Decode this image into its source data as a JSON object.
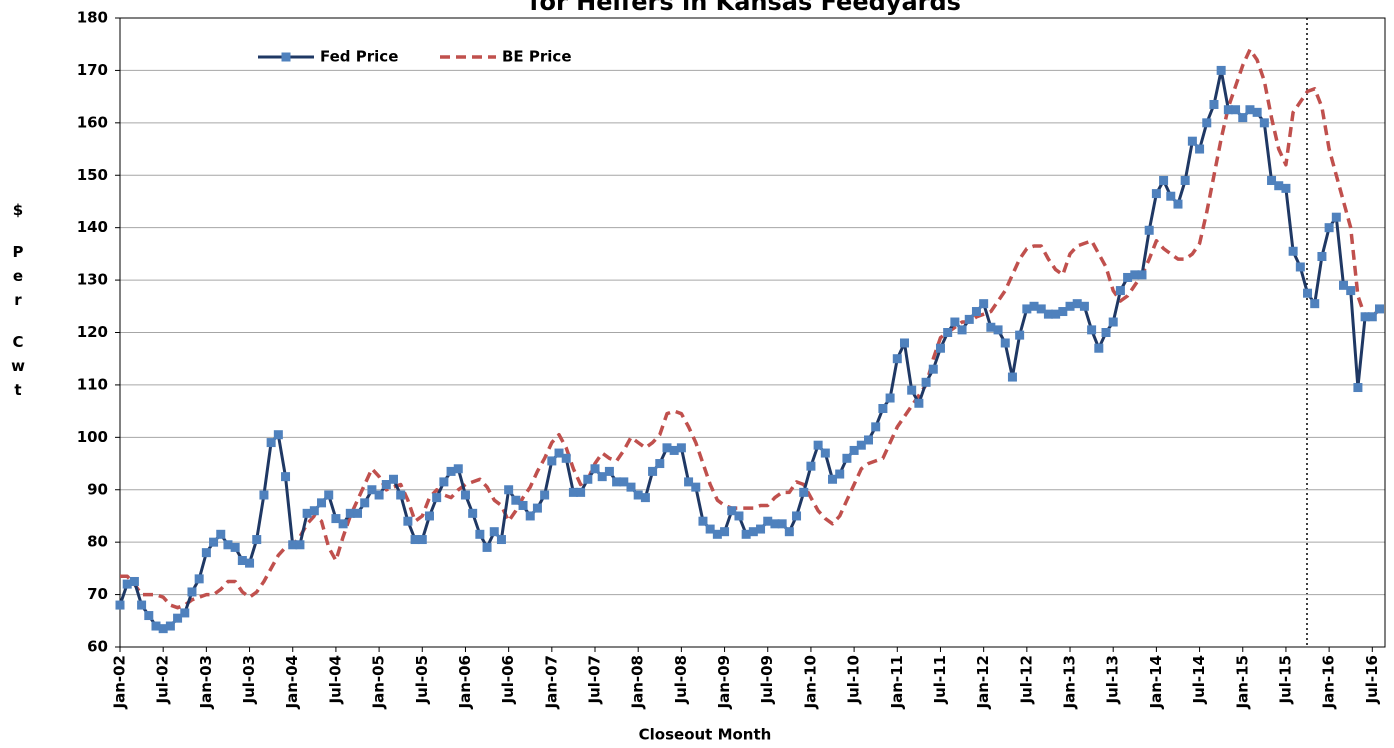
{
  "chart_data": {
    "type": "line",
    "title": "for Heifers in Kansas Feedyards",
    "x_label": "Closeout Month",
    "y_label": "$ Per Cwt",
    "categories": [
      "Jan-02",
      null,
      null,
      null,
      null,
      null,
      "Jul-02",
      null,
      null,
      null,
      null,
      null,
      "Jan-03",
      null,
      null,
      null,
      null,
      null,
      "Jul-03",
      null,
      null,
      null,
      null,
      null,
      "Jan-04",
      null,
      null,
      null,
      null,
      null,
      "Jul-04",
      null,
      null,
      null,
      null,
      null,
      "Jan-05",
      null,
      null,
      null,
      null,
      null,
      "Jul-05",
      null,
      null,
      null,
      null,
      null,
      "Jan-06",
      null,
      null,
      null,
      null,
      null,
      "Jul-06",
      null,
      null,
      null,
      null,
      null,
      "Jan-07",
      null,
      null,
      null,
      null,
      null,
      "Jul-07",
      null,
      null,
      null,
      null,
      null,
      "Jan-08",
      null,
      null,
      null,
      null,
      null,
      "Jul-08",
      null,
      null,
      null,
      null,
      null,
      "Jan-09",
      null,
      null,
      null,
      null,
      null,
      "Jul-09",
      null,
      null,
      null,
      null,
      null,
      "Jan-10",
      null,
      null,
      null,
      null,
      null,
      "Jul-10",
      null,
      null,
      null,
      null,
      null,
      "Jan-11",
      null,
      null,
      null,
      null,
      null,
      "Jul-11",
      null,
      null,
      null,
      null,
      null,
      "Jan-12",
      null,
      null,
      null,
      null,
      null,
      "Jul-12",
      null,
      null,
      null,
      null,
      null,
      "Jan-13",
      null,
      null,
      null,
      null,
      null,
      "Jul-13",
      null,
      null,
      null,
      null,
      null,
      "Jan-14",
      null,
      null,
      null,
      null,
      null,
      "Jul-14",
      null,
      null,
      null,
      null,
      null,
      "Jan-15",
      null,
      null,
      null,
      null,
      null,
      "Jul-15",
      null,
      null,
      null,
      null,
      null,
      "Jan-16",
      null,
      null,
      null,
      null,
      null,
      "Jul-16",
      null
    ],
    "series": [
      {
        "name": "Fed Price",
        "color": "#1f3864",
        "marker_color": "#4f81bd",
        "dashed": false,
        "values": [
          68,
          72,
          72.5,
          68,
          66,
          64,
          63.5,
          64,
          65.5,
          66.5,
          70.5,
          73,
          78,
          80,
          81.5,
          79.5,
          79,
          76.5,
          76,
          80.5,
          89,
          99,
          100.5,
          92.5,
          79.5,
          79.5,
          85.5,
          86,
          87.5,
          89,
          84.5,
          83.5,
          85.5,
          85.5,
          87.5,
          90,
          89,
          91,
          92,
          89,
          84,
          80.5,
          80.5,
          85,
          88.5,
          91.5,
          93.5,
          94,
          89,
          85.5,
          81.5,
          79,
          82,
          80.5,
          90,
          88,
          87,
          85,
          86.5,
          89,
          95.5,
          97,
          96,
          89.5,
          89.5,
          92,
          94,
          92.5,
          93.5,
          91.5,
          91.5,
          90.5,
          89,
          88.5,
          93.5,
          95,
          98,
          97.5,
          98,
          91.5,
          90.5,
          84,
          82.5,
          81.5,
          82,
          86,
          85,
          81.5,
          82,
          82.5,
          84,
          83.5,
          83.5,
          82,
          85,
          89.5,
          94.5,
          98.5,
          97,
          92,
          93,
          96,
          97.5,
          98.5,
          99.5,
          102,
          105.5,
          107.5,
          115,
          118,
          109,
          106.5,
          110.5,
          113,
          117,
          120,
          122,
          120.5,
          122.5,
          124,
          125.5,
          121,
          120.5,
          118,
          111.5,
          119.5,
          124.5,
          125,
          124.5,
          123.5,
          123.5,
          124,
          125,
          125.5,
          125,
          120.5,
          117,
          120,
          122,
          128,
          130.5,
          131,
          131,
          139.5,
          146.5,
          149,
          146,
          144.5,
          149,
          156.5,
          155,
          160,
          163.5,
          170,
          162.5,
          162.5,
          161,
          162.5,
          162,
          160,
          149,
          148,
          147.5,
          135.5,
          132.5,
          127.5,
          125.5,
          134.5,
          140,
          142,
          129,
          128,
          109.5,
          123,
          123,
          124.5
        ]
      },
      {
        "name": "BE Price",
        "color": "#c0504d",
        "dashed": true,
        "values": [
          73.5,
          73.5,
          72,
          70,
          70,
          70,
          69.5,
          68,
          67.5,
          68,
          69,
          69.5,
          70,
          70,
          71,
          72.5,
          72.5,
          70.5,
          69.5,
          70.5,
          72.5,
          75,
          77.5,
          79,
          79.5,
          81,
          83.5,
          85,
          84,
          79,
          76.5,
          81,
          85,
          88,
          91,
          94,
          92.5,
          90,
          90.5,
          91,
          88,
          84,
          85,
          88.5,
          90,
          89,
          88.5,
          90,
          91,
          91.5,
          92,
          90.5,
          88,
          87,
          84,
          86,
          88.5,
          90.5,
          93.5,
          96,
          99,
          100.5,
          98,
          94,
          91,
          92,
          95,
          97,
          96,
          95.5,
          97.5,
          100,
          99,
          98,
          99,
          100.5,
          104.5,
          105,
          104.5,
          102,
          99,
          95,
          91,
          88,
          87,
          86.5,
          86.5,
          86.5,
          86.5,
          87,
          87,
          88.5,
          89.5,
          89.5,
          91.5,
          91,
          88.5,
          86,
          84.5,
          83.5,
          85,
          88,
          91,
          94,
          95,
          95.5,
          96,
          99,
          102,
          104,
          106,
          108,
          110,
          115,
          119,
          120,
          121,
          122,
          122,
          123,
          123.5,
          124,
          126,
          128,
          131,
          134,
          136,
          136.5,
          136.5,
          134,
          132,
          131,
          135,
          136.5,
          137,
          137.5,
          135,
          132.5,
          128,
          126,
          127,
          129,
          131,
          134,
          137.5,
          136,
          135,
          134,
          134,
          135,
          137,
          143,
          150,
          157,
          163,
          167,
          171,
          174,
          172,
          168,
          161,
          155,
          152,
          162,
          164,
          166,
          166.5,
          163,
          155,
          150,
          145,
          140,
          127,
          123,
          123,
          124.5
        ]
      }
    ],
    "ylim": [
      60,
      180
    ],
    "yticks": [
      60,
      70,
      80,
      90,
      100,
      110,
      120,
      130,
      140,
      150,
      160,
      170,
      180
    ],
    "grid": true,
    "legend": "top-left"
  }
}
